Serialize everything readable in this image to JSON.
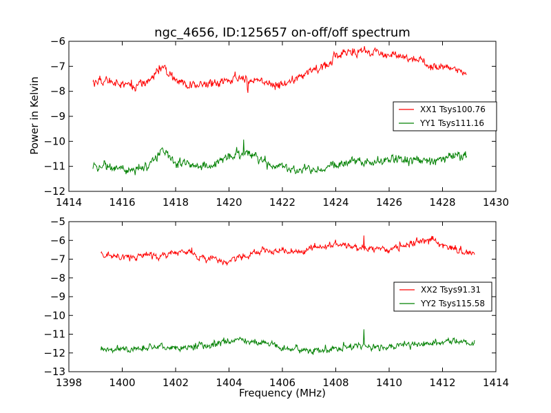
{
  "figure": {
    "title": "ngc_4656, ID:125657 on-off/off spectrum",
    "ylabel": "Power in Kelvin",
    "xlabel": "Frequency (MHz)"
  },
  "chart_data": [
    {
      "type": "line",
      "title": "ngc_4656, ID:125657 on-off/off spectrum",
      "ylabel": "Power in Kelvin",
      "xlabel": "",
      "xlim": [
        1414,
        1430
      ],
      "ylim": [
        -12,
        -6
      ],
      "xticks": [
        1414,
        1416,
        1418,
        1420,
        1422,
        1424,
        1426,
        1428,
        1430
      ],
      "yticks": [
        -12,
        -11,
        -10,
        -9,
        -8,
        -7,
        -6
      ],
      "legend": "center-right",
      "x_start": 1414.9,
      "x_end": 1428.9,
      "series": [
        {
          "name": "XX1 Tsys100.76",
          "color": "#ff0000",
          "x": [
            1414.9,
            1415.5,
            1416.0,
            1416.5,
            1417.0,
            1417.5,
            1418.0,
            1418.5,
            1419.0,
            1419.5,
            1420.0,
            1420.3,
            1420.7,
            1421.0,
            1421.5,
            1422.0,
            1422.5,
            1423.0,
            1423.5,
            1424.0,
            1424.5,
            1425.0,
            1425.5,
            1426.0,
            1426.5,
            1427.0,
            1427.5,
            1428.0,
            1428.5,
            1428.9
          ],
          "values": [
            -7.6,
            -7.6,
            -7.7,
            -7.8,
            -7.6,
            -7.0,
            -7.6,
            -7.7,
            -7.7,
            -7.7,
            -7.6,
            -7.4,
            -7.5,
            -7.5,
            -7.7,
            -7.7,
            -7.6,
            -7.2,
            -7.0,
            -6.7,
            -6.4,
            -6.4,
            -6.4,
            -6.6,
            -6.6,
            -6.7,
            -7.0,
            -7.0,
            -7.1,
            -7.3
          ]
        },
        {
          "name": "YY1 Tsys111.16",
          "color": "#008000",
          "x": [
            1414.9,
            1415.5,
            1416.0,
            1416.5,
            1417.0,
            1417.5,
            1418.0,
            1418.5,
            1419.0,
            1419.5,
            1420.0,
            1420.3,
            1420.7,
            1421.0,
            1421.5,
            1422.0,
            1422.5,
            1423.0,
            1423.5,
            1424.0,
            1424.5,
            1425.0,
            1425.5,
            1426.0,
            1426.5,
            1427.0,
            1427.5,
            1428.0,
            1428.5,
            1428.9
          ],
          "values": [
            -11.0,
            -11.0,
            -11.1,
            -11.2,
            -10.9,
            -10.4,
            -10.8,
            -10.9,
            -11.0,
            -10.9,
            -10.6,
            -10.5,
            -10.5,
            -10.6,
            -10.9,
            -11.0,
            -11.2,
            -11.1,
            -11.1,
            -10.9,
            -10.8,
            -10.9,
            -10.8,
            -10.7,
            -10.7,
            -10.8,
            -10.7,
            -10.7,
            -10.6,
            -10.6
          ]
        }
      ]
    },
    {
      "type": "line",
      "title": "",
      "ylabel": "",
      "xlabel": "Frequency (MHz)",
      "xlim": [
        1398,
        1414
      ],
      "ylim": [
        -13,
        -5
      ],
      "xticks": [
        1398,
        1400,
        1402,
        1404,
        1406,
        1408,
        1410,
        1412,
        1414
      ],
      "yticks": [
        -13,
        -12,
        -11,
        -10,
        -9,
        -8,
        -7,
        -6,
        -5
      ],
      "legend": "center-right",
      "series": [
        {
          "name": "XX2 Tsys91.31",
          "color": "#ff0000",
          "x": [
            1399.2,
            1400.0,
            1400.5,
            1401.0,
            1401.5,
            1402.0,
            1402.5,
            1403.0,
            1403.5,
            1404.0,
            1404.5,
            1405.0,
            1405.5,
            1406.0,
            1406.5,
            1407.0,
            1407.5,
            1408.0,
            1408.5,
            1409.0,
            1409.5,
            1410.0,
            1410.5,
            1411.0,
            1411.5,
            1412.0,
            1412.5,
            1413.2
          ],
          "values": [
            -6.8,
            -6.8,
            -6.9,
            -6.8,
            -6.8,
            -6.6,
            -6.6,
            -6.9,
            -7.1,
            -7.2,
            -6.9,
            -6.6,
            -6.6,
            -6.6,
            -6.6,
            -6.5,
            -6.3,
            -6.2,
            -6.3,
            -6.4,
            -6.5,
            -6.5,
            -6.3,
            -6.1,
            -6.0,
            -6.2,
            -6.5,
            -6.7
          ]
        },
        {
          "name": "YY2 Tsys115.58",
          "color": "#008000",
          "x": [
            1399.2,
            1400.0,
            1400.5,
            1401.0,
            1401.5,
            1402.0,
            1402.5,
            1403.0,
            1403.5,
            1404.0,
            1404.5,
            1405.0,
            1405.5,
            1406.0,
            1406.5,
            1407.0,
            1407.5,
            1408.0,
            1408.5,
            1409.0,
            1409.5,
            1410.0,
            1410.5,
            1411.0,
            1411.5,
            1412.0,
            1412.5,
            1413.2
          ],
          "values": [
            -11.8,
            -11.8,
            -11.8,
            -11.7,
            -11.7,
            -11.7,
            -11.7,
            -11.6,
            -11.5,
            -11.3,
            -11.3,
            -11.4,
            -11.5,
            -11.7,
            -11.8,
            -11.9,
            -11.9,
            -11.8,
            -11.7,
            -11.6,
            -11.7,
            -11.7,
            -11.6,
            -11.6,
            -11.5,
            -11.4,
            -11.4,
            -11.5
          ]
        }
      ]
    }
  ]
}
